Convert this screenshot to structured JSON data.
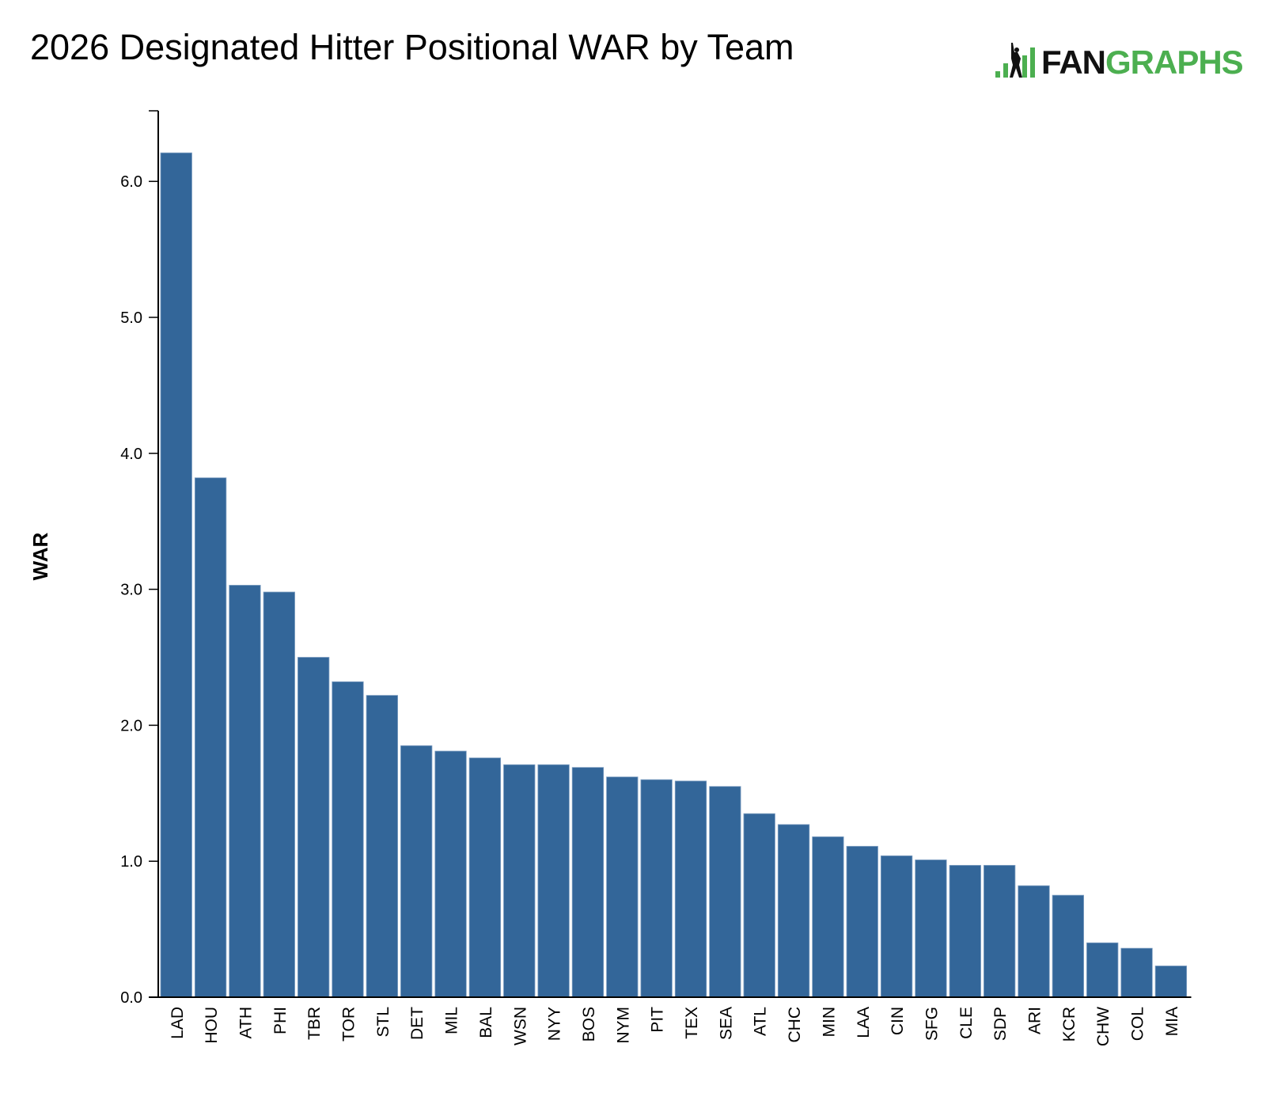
{
  "chart_data": {
    "type": "bar",
    "title": "2026 Designated Hitter Positional WAR by Team",
    "xlabel": "",
    "ylabel": "WAR",
    "ylim": [
      0,
      6.5
    ],
    "yticks": [
      "0.0",
      "1.0",
      "2.0",
      "3.0",
      "4.0",
      "5.0",
      "6.0"
    ],
    "grid": false,
    "categories": [
      "LAD",
      "HOU",
      "ATH",
      "PHI",
      "TBR",
      "TOR",
      "STL",
      "DET",
      "MIL",
      "BAL",
      "WSN",
      "NYY",
      "BOS",
      "NYM",
      "PIT",
      "TEX",
      "SEA",
      "ATL",
      "CHC",
      "MIN",
      "LAA",
      "CIN",
      "SFG",
      "CLE",
      "SDP",
      "ARI",
      "KCR",
      "CHW",
      "COL",
      "MIA"
    ],
    "values": [
      6.21,
      3.82,
      3.03,
      2.98,
      2.5,
      2.32,
      2.22,
      1.85,
      1.81,
      1.76,
      1.71,
      1.71,
      1.69,
      1.62,
      1.6,
      1.59,
      1.55,
      1.35,
      1.27,
      1.18,
      1.11,
      1.04,
      1.01,
      0.97,
      0.97,
      0.82,
      0.75,
      0.4,
      0.36,
      0.23
    ],
    "bar_color": "#336699"
  },
  "logo": {
    "text_fan": "FAN",
    "text_graphs": "GRAPHS",
    "green": "#4caf50"
  }
}
